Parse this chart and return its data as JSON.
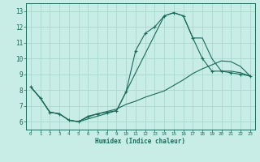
{
  "xlabel": "Humidex (Indice chaleur)",
  "bg_color": "#c8ece6",
  "grid_color": "#a8d8cc",
  "line_color": "#1a6b5a",
  "xlim": [
    -0.5,
    23.5
  ],
  "ylim": [
    5.5,
    13.5
  ],
  "xticks": [
    0,
    1,
    2,
    3,
    4,
    5,
    6,
    7,
    8,
    9,
    10,
    11,
    12,
    13,
    14,
    15,
    16,
    17,
    18,
    19,
    20,
    21,
    22,
    23
  ],
  "yticks": [
    6,
    7,
    8,
    9,
    10,
    11,
    12,
    13
  ],
  "line1_x": [
    0,
    1,
    2,
    3,
    4,
    5,
    6,
    7,
    8,
    9,
    10,
    11,
    12,
    13,
    14,
    15,
    16,
    17,
    18,
    19,
    20,
    21,
    22,
    23
  ],
  "line1_y": [
    8.2,
    7.5,
    6.6,
    6.5,
    6.1,
    6.0,
    6.3,
    6.5,
    6.6,
    6.7,
    7.9,
    10.5,
    11.6,
    12.0,
    12.7,
    12.9,
    12.7,
    11.3,
    10.0,
    9.2,
    9.2,
    9.1,
    9.0,
    8.9
  ],
  "line2_x": [
    0,
    1,
    2,
    3,
    4,
    5,
    6,
    7,
    8,
    9,
    10,
    11,
    12,
    13,
    14,
    15,
    16,
    17,
    18,
    19,
    20,
    21,
    22,
    23
  ],
  "line2_y": [
    8.2,
    7.5,
    6.6,
    6.5,
    6.1,
    6.0,
    6.35,
    6.5,
    6.65,
    6.8,
    7.1,
    7.3,
    7.55,
    7.75,
    7.95,
    8.3,
    8.65,
    9.05,
    9.35,
    9.6,
    9.85,
    9.8,
    9.5,
    8.9
  ],
  "line3_x": [
    0,
    1,
    2,
    3,
    4,
    5,
    9,
    10,
    14,
    15,
    16,
    17,
    18,
    19,
    20,
    21,
    22,
    23
  ],
  "line3_y": [
    8.2,
    7.5,
    6.6,
    6.5,
    6.1,
    6.0,
    6.7,
    7.9,
    12.7,
    12.9,
    12.7,
    11.3,
    11.3,
    10.0,
    9.2,
    9.2,
    9.1,
    8.9
  ]
}
